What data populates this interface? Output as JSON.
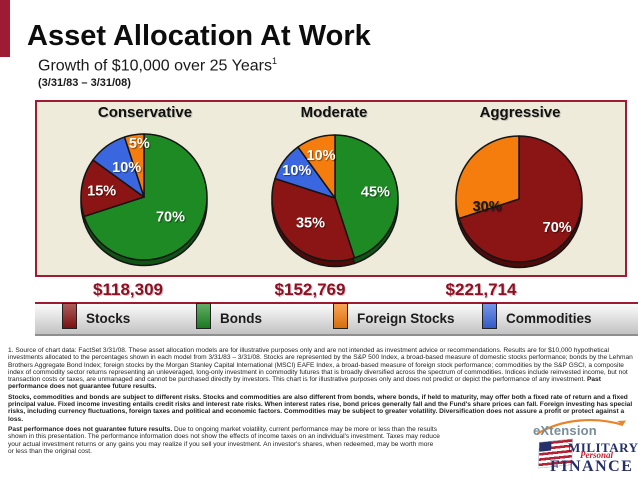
{
  "header": {
    "title": "Asset Allocation At Work",
    "subtitle": "Growth of $10,000 over 25 Years",
    "subtitle_superscript": "1",
    "date_range": "(3/31/83 – 3/31/08)"
  },
  "colors": {
    "accent_red": "#9E1B33",
    "value_red": "#8E1023",
    "panel_bg": "#EFEBDA",
    "panel_border": "#9E1B33",
    "logo_navy": "#25306B",
    "logo_red": "#C22133",
    "logo_gray": "#768E9B",
    "logo_orange": "#E8852B"
  },
  "chart_data": [
    {
      "type": "pie",
      "title": "Conservative",
      "result_value": "$118,309",
      "slices": [
        {
          "asset": "bonds",
          "pct": 70,
          "label": "70%",
          "label_r": 0.52
        },
        {
          "asset": "stocks",
          "pct": 15,
          "label": "15%",
          "label_r": 0.68
        },
        {
          "asset": "commodities",
          "pct": 10,
          "label": "10%",
          "label_angle": 330,
          "label_r": 0.55
        },
        {
          "asset": "foreign_stocks",
          "pct": 5,
          "label": "5%",
          "label_angle": 355,
          "label_r": 0.86
        }
      ]
    },
    {
      "type": "pie",
      "title": "Moderate",
      "result_value": "$152,769",
      "slices": [
        {
          "asset": "bonds",
          "pct": 45,
          "label": "45%",
          "label_r": 0.65
        },
        {
          "asset": "stocks",
          "pct": 35,
          "label": "35%",
          "label_r": 0.55
        },
        {
          "asset": "commodities",
          "pct": 10,
          "label": "10%",
          "label_r": 0.75
        },
        {
          "asset": "foreign_stocks",
          "pct": 10,
          "label": "10%",
          "label_r": 0.72
        }
      ]
    },
    {
      "type": "pie",
      "title": "Aggressive",
      "result_value": "$221,714",
      "slices": [
        {
          "asset": "stocks",
          "pct": 70,
          "label": "70%",
          "label_r": 0.75
        },
        {
          "asset": "foreign_stocks",
          "pct": 30,
          "label": "30%",
          "label_angle": 258,
          "label_r": 0.52,
          "label_color": "#1a1a1a"
        }
      ]
    }
  ],
  "legend": {
    "items": [
      {
        "key": "stocks",
        "label": "Stocks",
        "color": "#8B1414",
        "dark": "#4F0A0A"
      },
      {
        "key": "bonds",
        "label": "Bonds",
        "color": "#1E8A24",
        "dark": "#0F5414"
      },
      {
        "key": "foreign_stocks",
        "label": "Foreign Stocks",
        "color": "#F57D0D",
        "dark": "#9C4E04"
      },
      {
        "key": "commodities",
        "label": "Commodities",
        "color": "#3A67E0",
        "dark": "#1F3B8F"
      }
    ]
  },
  "footnotes": {
    "p1_text": "1. Source of chart data: FactSet 3/31/08. These asset allocation models are for illustrative purposes only and are not intended as investment advice or recommendations. Results are for $10,000 hypothetical investments allocated to the percentages shown in each model from 3/31/83 – 3/31/08. Stocks are represented by the S&P 500 Index, a broad-based measure of domestic stocks performance; bonds by the Lehman Brothers Aggregate Bond Index; foreign stocks by the Morgan Stanley Capital International (MSCI) EAFE Index, a broad-based measure of foreign stock performance; commodities by the S&P GSCI, a composite index of commodity sector returns representing an unleveraged, long-only investment in commodity futures that is broadly diversified across the spectrum of commodities. Indices include reinvested income, but not transaction costs or taxes, are unmanaged and cannot be purchased directly by investors. This chart is for illustrative purposes only and does not predict or depict the performance of any investment. ",
    "p1_bold": "Past performance does not guarantee future results.",
    "p2_bold": "Stocks, commodities and bonds are subject to different risks. Stocks and commodities are also different from bonds, where bonds, if held to maturity, may offer both a fixed rate of return and a fixed principal value. Fixed income investing entails credit risks and interest rate risks. When interest rates rise, bond prices generally fall and the Fund's share prices can fall. Foreign investing has special risks, including currency fluctuations, foreign taxes and political and economic factors. Commodities may be subject to greater volatility. Diversification does not assure a profit or protect against a loss.",
    "p3_bold": "Past performance does not guarantee future results.",
    "p3_text": " Due to ongoing market volatility, current performance may be more or less than the results shown in this presentation. The performance information does not show the effects of income taxes on an individual's investment. Taxes may reduce your actual investment returns or any gains you may realize if you sell your investment. An investor's shares, when redeemed, may be worth more or less than the original cost."
  },
  "logo": {
    "extension": "eXtension",
    "military": "MILITARY",
    "personal": "Personal",
    "finance": "FINANCE"
  }
}
